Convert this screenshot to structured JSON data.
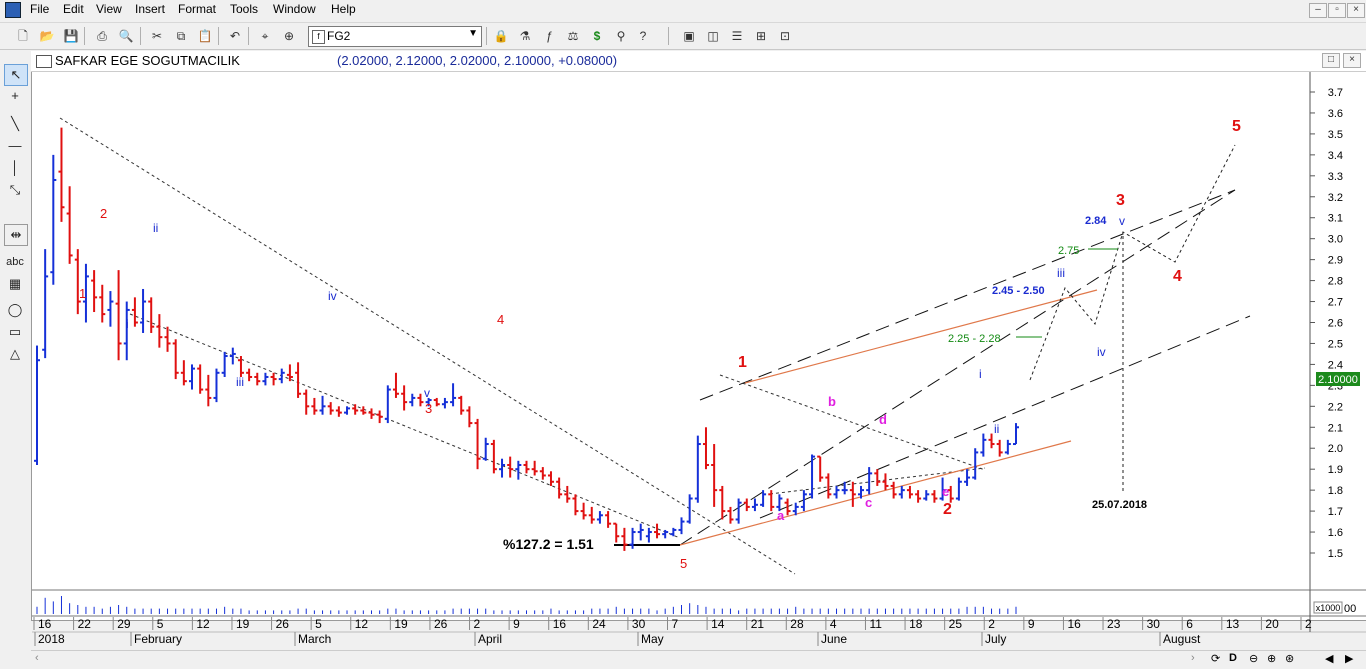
{
  "menu": {
    "items": [
      "File",
      "Edit",
      "View",
      "Insert",
      "Format",
      "Tools",
      "Window",
      "Help"
    ]
  },
  "toolbar": {
    "symbol": "FG2"
  },
  "chart_window": {
    "title": "SAFKAR EGE SOGUTMACILIK",
    "ohlc": "(2.02000, 2.12000, 2.02000, 2.10000, +0.08000)"
  },
  "chart_data": {
    "type": "candlestick",
    "ylim": [
      1.38,
      3.82
    ],
    "price_ticks": [
      "3.7",
      "3.6",
      "3.5",
      "3.4",
      "3.3",
      "3.2",
      "3.1",
      "3.0",
      "2.9",
      "2.8",
      "2.7",
      "2.6",
      "2.5",
      "2.4",
      "2.3",
      "2.2",
      "2.1",
      "2.0",
      "1.9",
      "1.8",
      "1.7",
      "1.6",
      "1.5"
    ],
    "last_price": "2.10000",
    "volume_scale": "x1000",
    "volume_right_label": "00",
    "date_ticks": [
      "16",
      "22",
      "29",
      "5",
      "12",
      "19",
      "26",
      "5",
      "12",
      "19",
      "26",
      "2",
      "9",
      "16",
      "24",
      "30",
      "7",
      "14",
      "21",
      "28",
      "4",
      "11",
      "18",
      "25",
      "2",
      "9",
      "16",
      "23",
      "30",
      "6",
      "13",
      "20",
      "2"
    ],
    "month_labels": [
      "2018",
      "February",
      "March",
      "April",
      "May",
      "June",
      "July",
      "August"
    ],
    "wave_labels": {
      "red": [
        "1",
        "2",
        "3",
        "4",
        "5",
        "1",
        "2",
        "3",
        "4",
        "5"
      ],
      "blue": [
        "i",
        "ii",
        "iii",
        "iv",
        "v",
        "i",
        "ii",
        "iii",
        "iv",
        "v"
      ],
      "magenta": [
        "a",
        "b",
        "c",
        "d",
        "e"
      ]
    },
    "annotations": {
      "fib": "%127.2 = 1.51",
      "target1": "2.25 - 2.28",
      "target2": "2.45 - 2.50",
      "target3": "2.75",
      "target4": "2.84",
      "date": "25.07.2018"
    },
    "candles": [
      [
        1.94,
        2.49,
        1.92,
        2.42
      ],
      [
        2.47,
        2.95,
        2.43,
        2.82
      ],
      [
        2.84,
        3.4,
        2.78,
        3.28
      ],
      [
        3.32,
        3.53,
        3.08,
        3.15
      ],
      [
        3.12,
        3.25,
        2.88,
        2.92
      ],
      [
        2.9,
        2.95,
        2.64,
        2.7
      ],
      [
        2.7,
        2.88,
        2.6,
        2.82
      ],
      [
        2.8,
        2.85,
        2.65,
        2.72
      ],
      [
        2.72,
        2.78,
        2.6,
        2.64
      ],
      [
        2.66,
        2.75,
        2.58,
        2.7
      ],
      [
        2.69,
        2.85,
        2.42,
        2.5
      ],
      [
        2.5,
        2.7,
        2.42,
        2.66
      ],
      [
        2.66,
        2.72,
        2.58,
        2.6
      ],
      [
        2.6,
        2.76,
        2.55,
        2.7
      ],
      [
        2.7,
        2.72,
        2.55,
        2.58
      ],
      [
        2.58,
        2.64,
        2.48,
        2.53
      ],
      [
        2.53,
        2.58,
        2.46,
        2.5
      ],
      [
        2.5,
        2.52,
        2.33,
        2.36
      ],
      [
        2.36,
        2.42,
        2.3,
        2.32
      ],
      [
        2.32,
        2.4,
        2.28,
        2.38
      ],
      [
        2.38,
        2.4,
        2.26,
        2.28
      ],
      [
        2.28,
        2.35,
        2.2,
        2.24
      ],
      [
        2.24,
        2.38,
        2.22,
        2.36
      ],
      [
        2.36,
        2.46,
        2.34,
        2.44
      ],
      [
        2.44,
        2.48,
        2.4,
        2.45
      ],
      [
        2.42,
        2.44,
        2.34,
        2.36
      ],
      [
        2.36,
        2.38,
        2.32,
        2.34
      ],
      [
        2.34,
        2.36,
        2.3,
        2.32
      ],
      [
        2.32,
        2.36,
        2.3,
        2.34
      ],
      [
        2.34,
        2.36,
        2.3,
        2.33
      ],
      [
        2.33,
        2.38,
        2.31,
        2.36
      ],
      [
        2.35,
        2.4,
        2.32,
        2.34
      ],
      [
        2.36,
        2.41,
        2.24,
        2.26
      ],
      [
        2.26,
        2.28,
        2.16,
        2.2
      ],
      [
        2.2,
        2.24,
        2.16,
        2.18
      ],
      [
        2.18,
        2.25,
        2.16,
        2.2
      ],
      [
        2.2,
        2.22,
        2.16,
        2.18
      ],
      [
        2.18,
        2.2,
        2.15,
        2.17
      ],
      [
        2.17,
        2.2,
        2.16,
        2.19
      ],
      [
        2.19,
        2.21,
        2.16,
        2.18
      ],
      [
        2.18,
        2.2,
        2.16,
        2.17
      ],
      [
        2.17,
        2.19,
        2.14,
        2.16
      ],
      [
        2.16,
        2.18,
        2.12,
        2.15
      ],
      [
        2.14,
        2.3,
        2.12,
        2.28
      ],
      [
        2.28,
        2.36,
        2.24,
        2.26
      ],
      [
        2.26,
        2.3,
        2.18,
        2.22
      ],
      [
        2.22,
        2.26,
        2.2,
        2.24
      ],
      [
        2.24,
        2.26,
        2.2,
        2.22
      ],
      [
        2.22,
        2.24,
        2.2,
        2.23
      ],
      [
        2.23,
        2.24,
        2.2,
        2.21
      ],
      [
        2.21,
        2.24,
        2.19,
        2.22
      ],
      [
        2.22,
        2.31,
        2.2,
        2.24
      ],
      [
        2.24,
        2.25,
        2.16,
        2.18
      ],
      [
        2.18,
        2.2,
        2.1,
        2.12
      ],
      [
        2.12,
        2.14,
        1.9,
        1.95
      ],
      [
        1.95,
        2.05,
        1.94,
        2.02
      ],
      [
        2.02,
        2.04,
        1.88,
        1.9
      ],
      [
        1.9,
        1.95,
        1.86,
        1.92
      ],
      [
        1.92,
        1.96,
        1.86,
        1.9
      ],
      [
        1.9,
        1.94,
        1.85,
        1.92
      ],
      [
        1.92,
        1.94,
        1.88,
        1.9
      ],
      [
        1.9,
        1.94,
        1.87,
        1.89
      ],
      [
        1.89,
        1.91,
        1.85,
        1.87
      ],
      [
        1.87,
        1.89,
        1.82,
        1.84
      ],
      [
        1.84,
        1.86,
        1.76,
        1.78
      ],
      [
        1.78,
        1.82,
        1.74,
        1.76
      ],
      [
        1.76,
        1.78,
        1.68,
        1.7
      ],
      [
        1.7,
        1.74,
        1.66,
        1.68
      ],
      [
        1.68,
        1.72,
        1.64,
        1.66
      ],
      [
        1.66,
        1.7,
        1.64,
        1.68
      ],
      [
        1.68,
        1.7,
        1.62,
        1.64
      ],
      [
        1.64,
        1.64,
        1.55,
        1.58
      ],
      [
        1.58,
        1.62,
        1.51,
        1.54
      ],
      [
        1.54,
        1.62,
        1.52,
        1.6
      ],
      [
        1.6,
        1.64,
        1.56,
        1.61
      ],
      [
        1.58,
        1.62,
        1.55,
        1.6
      ],
      [
        1.6,
        1.64,
        1.57,
        1.59
      ],
      [
        1.59,
        1.61,
        1.57,
        1.6
      ],
      [
        1.59,
        1.62,
        1.58,
        1.61
      ],
      [
        1.61,
        1.67,
        1.59,
        1.65
      ],
      [
        1.65,
        1.78,
        1.64,
        1.76
      ],
      [
        1.76,
        2.06,
        1.74,
        2.02
      ],
      [
        2.02,
        2.1,
        1.9,
        1.92
      ],
      [
        1.92,
        2.02,
        1.72,
        1.8
      ],
      [
        1.8,
        1.82,
        1.66,
        1.7
      ],
      [
        1.7,
        1.72,
        1.64,
        1.66
      ],
      [
        1.66,
        1.76,
        1.64,
        1.74
      ],
      [
        1.74,
        1.76,
        1.7,
        1.72
      ],
      [
        1.72,
        1.76,
        1.7,
        1.73
      ],
      [
        1.73,
        1.8,
        1.72,
        1.78
      ],
      [
        1.78,
        1.8,
        1.7,
        1.72
      ],
      [
        1.72,
        1.78,
        1.7,
        1.76
      ],
      [
        1.74,
        1.76,
        1.68,
        1.7
      ],
      [
        1.7,
        1.74,
        1.68,
        1.72
      ],
      [
        1.72,
        1.8,
        1.7,
        1.78
      ],
      [
        1.78,
        1.97,
        1.76,
        1.96
      ],
      [
        1.96,
        1.96,
        1.84,
        1.86
      ],
      [
        1.86,
        1.88,
        1.76,
        1.78
      ],
      [
        1.78,
        1.82,
        1.76,
        1.8
      ],
      [
        1.8,
        1.84,
        1.78,
        1.8
      ],
      [
        1.8,
        1.84,
        1.72,
        1.78
      ],
      [
        1.78,
        1.82,
        1.76,
        1.8
      ],
      [
        1.8,
        1.91,
        1.78,
        1.88
      ],
      [
        1.88,
        1.9,
        1.82,
        1.84
      ],
      [
        1.84,
        1.88,
        1.8,
        1.82
      ],
      [
        1.82,
        1.84,
        1.76,
        1.78
      ],
      [
        1.78,
        1.82,
        1.76,
        1.8
      ],
      [
        1.8,
        1.82,
        1.76,
        1.78
      ],
      [
        1.78,
        1.8,
        1.74,
        1.76
      ],
      [
        1.76,
        1.8,
        1.75,
        1.78
      ],
      [
        1.78,
        1.8,
        1.74,
        1.76
      ],
      [
        1.76,
        1.86,
        1.75,
        1.8
      ],
      [
        1.8,
        1.82,
        1.74,
        1.76
      ],
      [
        1.76,
        1.86,
        1.75,
        1.84
      ],
      [
        1.84,
        1.9,
        1.82,
        1.86
      ],
      [
        1.86,
        2.0,
        1.85,
        1.98
      ],
      [
        1.98,
        2.07,
        1.96,
        2.04
      ],
      [
        2.04,
        2.07,
        2.0,
        2.02
      ],
      [
        2.02,
        2.04,
        1.96,
        1.98
      ],
      [
        1.98,
        2.04,
        1.97,
        2.02
      ],
      [
        2.02,
        2.12,
        2.02,
        2.1
      ]
    ],
    "volume": [
      4,
      9,
      7,
      10,
      6,
      5,
      4,
      4,
      3,
      4,
      5,
      4,
      3,
      3,
      3,
      3,
      3,
      3,
      3,
      3,
      3,
      3,
      3,
      4,
      3,
      3,
      2,
      2,
      2,
      2,
      2,
      2,
      3,
      3,
      2,
      2,
      2,
      2,
      2,
      2,
      2,
      2,
      2,
      3,
      3,
      2,
      2,
      2,
      2,
      2,
      2,
      3,
      3,
      3,
      3,
      3,
      2,
      2,
      2,
      2,
      2,
      2,
      2,
      3,
      2,
      2,
      2,
      2,
      3,
      3,
      3,
      4,
      3,
      3,
      3,
      3,
      2,
      3,
      4,
      5,
      6,
      5,
      4,
      3,
      3,
      3,
      2,
      3,
      3,
      3,
      3,
      3,
      3,
      4,
      3,
      3,
      3,
      3,
      3,
      3,
      3,
      3,
      3,
      3,
      3,
      3,
      3,
      3,
      3,
      3,
      3,
      3,
      3,
      3,
      4,
      4,
      4,
      3,
      3,
      3,
      4
    ]
  },
  "colors": {
    "up": "#1530d8",
    "down": "#e01010",
    "label_red": "#e01010",
    "label_blue": "#1a2bd0",
    "label_magenta": "#e020e0",
    "label_green": "#138a13",
    "orange": "#e0784a",
    "price_box": "#1c8a1c"
  },
  "icons": {
    "back": "arrow-left",
    "forward": "arrow-right"
  }
}
